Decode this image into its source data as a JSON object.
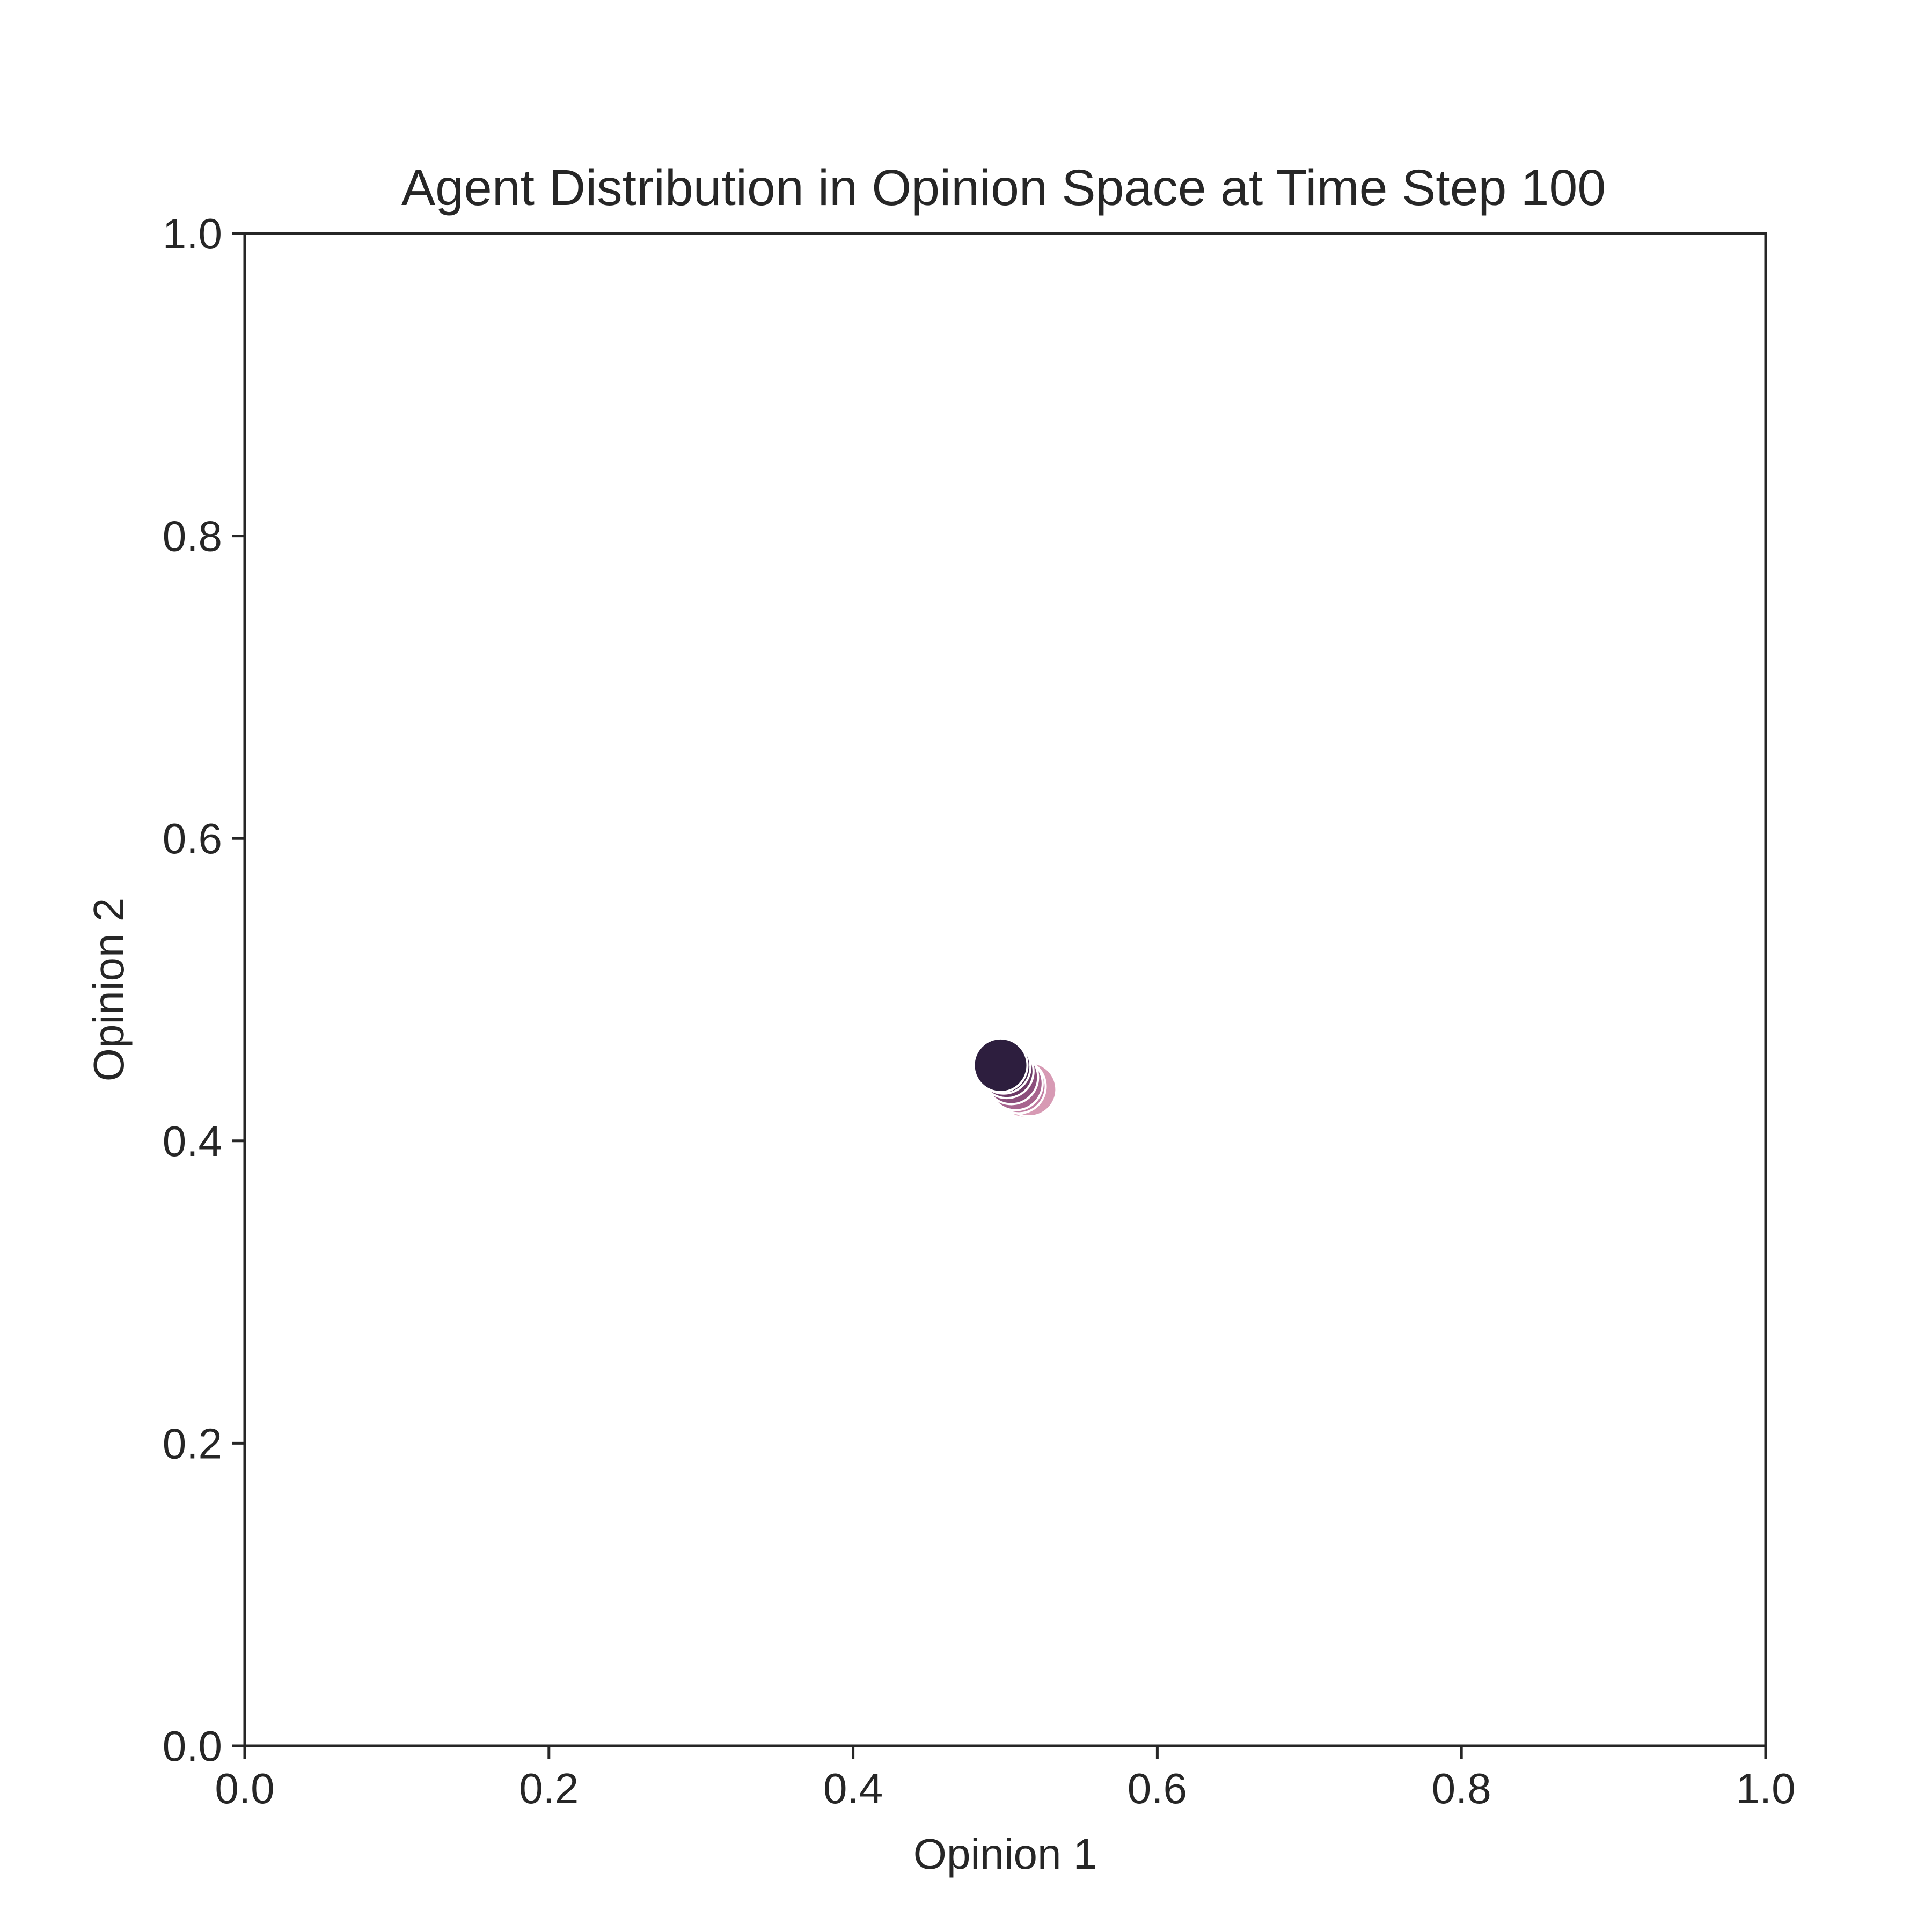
{
  "chart_data": {
    "type": "scatter",
    "title": "Agent Distribution in Opinion Space at Time Step 100",
    "xlabel": "Opinion 1",
    "ylabel": "Opinion 2",
    "xlim": [
      0.0,
      1.0
    ],
    "ylim": [
      0.0,
      1.0
    ],
    "xticks": [
      "0.0",
      "0.2",
      "0.4",
      "0.6",
      "0.8",
      "1.0"
    ],
    "yticks": [
      "0.0",
      "0.2",
      "0.4",
      "0.6",
      "0.8",
      "1.0"
    ],
    "grid": false,
    "legend": "none",
    "marker_edge_color": "#ffffff",
    "points": [
      {
        "x": 0.513,
        "y": 0.433,
        "color": "#e8b4c8"
      },
      {
        "x": 0.516,
        "y": 0.434,
        "color": "#d79ab4"
      },
      {
        "x": 0.509,
        "y": 0.436,
        "color": "#c17ea3"
      },
      {
        "x": 0.507,
        "y": 0.438,
        "color": "#a8658f"
      },
      {
        "x": 0.504,
        "y": 0.442,
        "color": "#8c4e7c"
      },
      {
        "x": 0.501,
        "y": 0.446,
        "color": "#6b3a66"
      },
      {
        "x": 0.499,
        "y": 0.449,
        "color": "#47284f"
      },
      {
        "x": 0.497,
        "y": 0.45,
        "color": "#2d1e3e"
      }
    ]
  }
}
